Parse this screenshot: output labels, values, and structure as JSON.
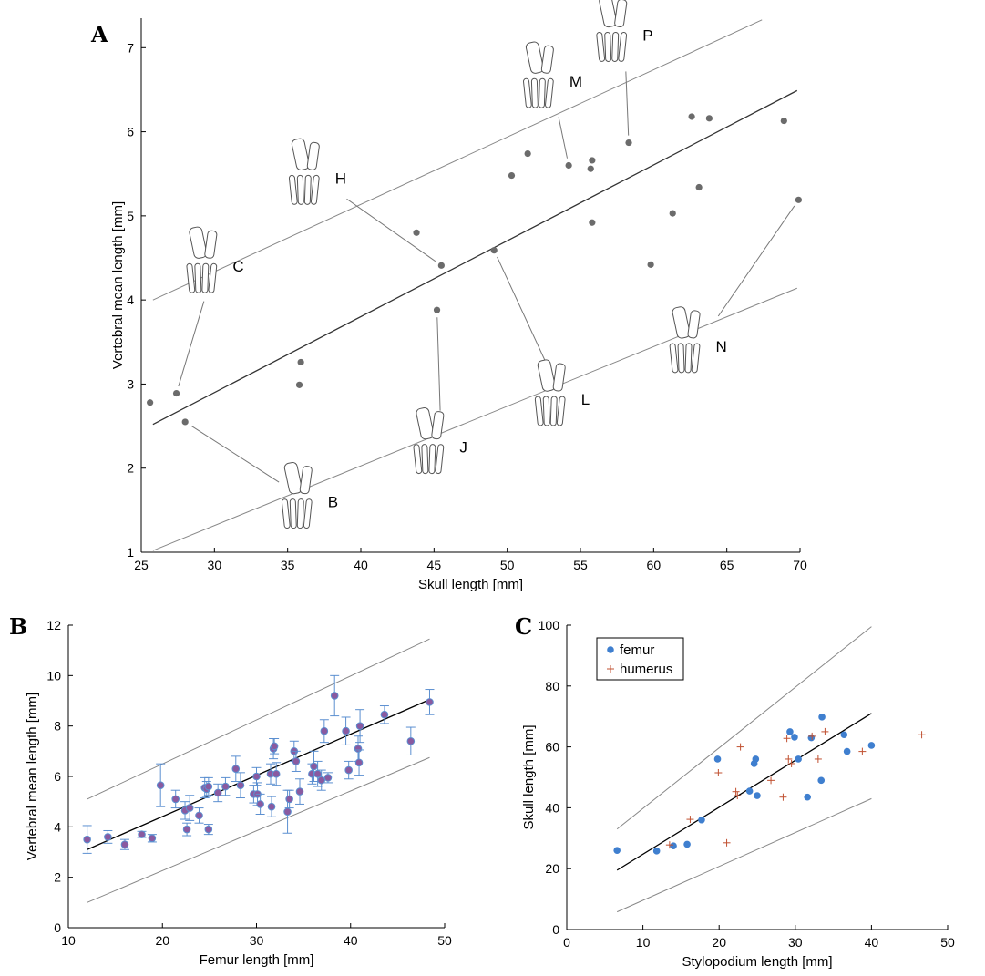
{
  "panels": {
    "A": {
      "letter": "A"
    },
    "B": {
      "letter": "B"
    },
    "C": {
      "letter": "C"
    }
  },
  "chart_data": [
    {
      "panel": "A",
      "type": "scatter",
      "xlabel": "Skull length [mm]",
      "ylabel": "Vertebral mean length [mm]",
      "xlim": [
        25,
        70
      ],
      "ylim": [
        1,
        7.35
      ],
      "xticks": [
        25,
        30,
        35,
        40,
        45,
        50,
        55,
        60,
        65,
        70
      ],
      "yticks": [
        1,
        2,
        3,
        4,
        5,
        6,
        7
      ],
      "grid": false,
      "points_color": "#6b6b6b",
      "points": [
        {
          "x": 25.6,
          "y": 2.78
        },
        {
          "x": 27.4,
          "y": 2.89
        },
        {
          "x": 28.0,
          "y": 2.55
        },
        {
          "x": 35.8,
          "y": 2.99
        },
        {
          "x": 35.9,
          "y": 3.26
        },
        {
          "x": 43.8,
          "y": 4.8
        },
        {
          "x": 45.2,
          "y": 3.88
        },
        {
          "x": 45.5,
          "y": 4.41
        },
        {
          "x": 49.1,
          "y": 4.59
        },
        {
          "x": 50.3,
          "y": 5.48
        },
        {
          "x": 51.4,
          "y": 5.74
        },
        {
          "x": 54.2,
          "y": 5.6
        },
        {
          "x": 55.7,
          "y": 5.56
        },
        {
          "x": 55.8,
          "y": 5.66
        },
        {
          "x": 55.8,
          "y": 4.92
        },
        {
          "x": 58.3,
          "y": 5.87
        },
        {
          "x": 59.8,
          "y": 4.42
        },
        {
          "x": 61.3,
          "y": 5.03
        },
        {
          "x": 62.6,
          "y": 6.18
        },
        {
          "x": 63.1,
          "y": 5.34
        },
        {
          "x": 63.8,
          "y": 6.16
        },
        {
          "x": 68.9,
          "y": 6.13
        },
        {
          "x": 69.9,
          "y": 5.19
        }
      ],
      "lines": [
        {
          "role": "fit",
          "x": [
            25.8,
            69.8
          ],
          "y": [
            2.52,
            6.49
          ],
          "color": "#333333"
        },
        {
          "role": "upper",
          "x": [
            25.8,
            67.4
          ],
          "y": [
            4.0,
            7.33
          ],
          "color": "#888888"
        },
        {
          "role": "lower",
          "x": [
            25.8,
            69.8
          ],
          "y": [
            1.02,
            4.14
          ],
          "color": "#888888"
        }
      ],
      "specimens": [
        {
          "label": "C",
          "x": 30.0,
          "y": 4.4,
          "point": {
            "x": 27.4,
            "y": 2.89
          }
        },
        {
          "label": "H",
          "x": 37.0,
          "y": 5.45,
          "point": {
            "x": 45.5,
            "y": 4.41
          }
        },
        {
          "label": "M",
          "x": 53.0,
          "y": 6.6,
          "point": {
            "x": 54.2,
            "y": 5.6
          }
        },
        {
          "label": "P",
          "x": 58.0,
          "y": 7.15,
          "point": {
            "x": 58.3,
            "y": 5.87
          }
        },
        {
          "label": "B",
          "x": 36.5,
          "y": 1.6,
          "point": {
            "x": 28.0,
            "y": 2.55
          }
        },
        {
          "label": "J",
          "x": 45.5,
          "y": 2.25,
          "point": {
            "x": 45.2,
            "y": 3.88
          }
        },
        {
          "label": "L",
          "x": 53.8,
          "y": 2.82,
          "point": {
            "x": 49.1,
            "y": 4.59
          }
        },
        {
          "label": "N",
          "x": 63.0,
          "y": 3.45,
          "point": {
            "x": 69.9,
            "y": 5.19
          }
        }
      ]
    },
    {
      "panel": "B",
      "type": "scatter",
      "xlabel": "Femur  length [mm]",
      "ylabel": "Vertebral mean length [mm]",
      "xlim": [
        10,
        50
      ],
      "ylim": [
        0,
        12
      ],
      "xticks": [
        10,
        20,
        30,
        40,
        50
      ],
      "yticks": [
        0,
        2,
        4,
        6,
        8,
        10,
        12
      ],
      "grid": false,
      "point_color": "#8a5aa0",
      "errorbar_color": "#5b8fd0",
      "points": [
        {
          "x": 12.0,
          "y": 3.5,
          "err": 0.55
        },
        {
          "x": 14.2,
          "y": 3.6,
          "err": 0.25
        },
        {
          "x": 16.0,
          "y": 3.3,
          "err": 0.2
        },
        {
          "x": 17.8,
          "y": 3.7,
          "err": 0.12
        },
        {
          "x": 18.9,
          "y": 3.55,
          "err": 0.15
        },
        {
          "x": 19.8,
          "y": 5.65,
          "err": 0.85
        },
        {
          "x": 21.4,
          "y": 5.1,
          "err": 0.35
        },
        {
          "x": 22.4,
          "y": 4.65,
          "err": 0.35
        },
        {
          "x": 22.6,
          "y": 3.9,
          "err": 0.25
        },
        {
          "x": 22.9,
          "y": 4.75,
          "err": 0.5
        },
        {
          "x": 23.9,
          "y": 4.45,
          "err": 0.3
        },
        {
          "x": 24.5,
          "y": 5.55,
          "err": 0.4
        },
        {
          "x": 24.7,
          "y": 5.5,
          "err": 0.3
        },
        {
          "x": 24.9,
          "y": 5.6,
          "err": 0.35
        },
        {
          "x": 24.9,
          "y": 3.9,
          "err": 0.2
        },
        {
          "x": 25.9,
          "y": 5.35,
          "err": 0.35
        },
        {
          "x": 26.7,
          "y": 5.6,
          "err": 0.35
        },
        {
          "x": 27.8,
          "y": 6.3,
          "err": 0.5
        },
        {
          "x": 28.3,
          "y": 5.65,
          "err": 0.5
        },
        {
          "x": 29.7,
          "y": 5.3,
          "err": 0.35
        },
        {
          "x": 30.0,
          "y": 6.0,
          "err": 0.35
        },
        {
          "x": 30.1,
          "y": 5.3,
          "err": 0.45
        },
        {
          "x": 30.4,
          "y": 4.9,
          "err": 0.4
        },
        {
          "x": 31.5,
          "y": 6.1,
          "err": 0.4
        },
        {
          "x": 31.6,
          "y": 4.8,
          "err": 0.4
        },
        {
          "x": 31.8,
          "y": 7.1,
          "err": 0.4
        },
        {
          "x": 31.9,
          "y": 7.2,
          "err": 0.3
        },
        {
          "x": 32.1,
          "y": 6.1,
          "err": 0.45
        },
        {
          "x": 33.3,
          "y": 4.6,
          "err": 0.85
        },
        {
          "x": 33.5,
          "y": 5.1,
          "err": 0.35
        },
        {
          "x": 34.0,
          "y": 7.0,
          "err": 0.4
        },
        {
          "x": 34.2,
          "y": 6.6,
          "err": 0.4
        },
        {
          "x": 34.6,
          "y": 5.4,
          "err": 0.5
        },
        {
          "x": 35.9,
          "y": 6.1,
          "err": 0.4
        },
        {
          "x": 36.1,
          "y": 6.4,
          "err": 0.6
        },
        {
          "x": 36.5,
          "y": 6.1,
          "err": 0.5
        },
        {
          "x": 36.9,
          "y": 5.85,
          "err": 0.4
        },
        {
          "x": 37.2,
          "y": 7.8,
          "err": 0.45
        },
        {
          "x": 37.6,
          "y": 5.95,
          "err": 0.2
        },
        {
          "x": 38.3,
          "y": 9.2,
          "err": 0.8
        },
        {
          "x": 39.5,
          "y": 7.8,
          "err": 0.55
        },
        {
          "x": 39.8,
          "y": 6.25,
          "err": 0.35
        },
        {
          "x": 40.8,
          "y": 7.1,
          "err": 0.5
        },
        {
          "x": 40.9,
          "y": 6.55,
          "err": 0.5
        },
        {
          "x": 41.0,
          "y": 8.0,
          "err": 0.65
        },
        {
          "x": 43.6,
          "y": 8.45,
          "err": 0.35
        },
        {
          "x": 46.4,
          "y": 7.4,
          "err": 0.55
        },
        {
          "x": 48.4,
          "y": 8.95,
          "err": 0.5
        }
      ],
      "lines": [
        {
          "role": "fit",
          "x": [
            12.0,
            48.4
          ],
          "y": [
            3.1,
            9.05
          ],
          "color": "#000000"
        },
        {
          "role": "upper",
          "x": [
            12.0,
            48.4
          ],
          "y": [
            5.1,
            11.45
          ],
          "color": "#888888"
        },
        {
          "role": "lower",
          "x": [
            12.0,
            48.4
          ],
          "y": [
            1.0,
            6.75
          ],
          "color": "#888888"
        }
      ]
    },
    {
      "panel": "C",
      "type": "scatter",
      "xlabel": "Stylopodium length [mm]",
      "ylabel": "Skull length [mm]",
      "xlim": [
        0,
        50
      ],
      "ylim": [
        0,
        100
      ],
      "xticks": [
        0,
        10,
        20,
        30,
        40,
        50
      ],
      "yticks": [
        0,
        20,
        40,
        60,
        80,
        100
      ],
      "grid": false,
      "legend": {
        "location": "top-left",
        "entries": [
          "femur",
          "humerus"
        ]
      },
      "series": [
        {
          "name": "femur",
          "marker": "circle",
          "color": "#3f7fcf",
          "points": [
            {
              "x": 6.6,
              "y": 26.0
            },
            {
              "x": 11.8,
              "y": 25.8
            },
            {
              "x": 14.0,
              "y": 27.5
            },
            {
              "x": 15.8,
              "y": 28.0
            },
            {
              "x": 17.7,
              "y": 36.0
            },
            {
              "x": 19.8,
              "y": 56.0
            },
            {
              "x": 24.0,
              "y": 45.5
            },
            {
              "x": 24.6,
              "y": 54.5
            },
            {
              "x": 24.8,
              "y": 56.0
            },
            {
              "x": 25.0,
              "y": 44.0
            },
            {
              "x": 29.3,
              "y": 65.0
            },
            {
              "x": 29.9,
              "y": 63.2
            },
            {
              "x": 30.4,
              "y": 56.0
            },
            {
              "x": 31.6,
              "y": 43.5
            },
            {
              "x": 32.1,
              "y": 63.0
            },
            {
              "x": 33.4,
              "y": 49.0
            },
            {
              "x": 33.5,
              "y": 69.8
            },
            {
              "x": 36.4,
              "y": 64.0
            },
            {
              "x": 36.8,
              "y": 58.5
            },
            {
              "x": 40.0,
              "y": 60.5
            }
          ]
        },
        {
          "name": "humerus",
          "marker": "plus",
          "color": "#c05030",
          "points": [
            {
              "x": 13.5,
              "y": 27.8
            },
            {
              "x": 16.2,
              "y": 36.2
            },
            {
              "x": 19.9,
              "y": 51.5
            },
            {
              "x": 21.0,
              "y": 28.5
            },
            {
              "x": 22.2,
              "y": 45.3
            },
            {
              "x": 22.4,
              "y": 44.0
            },
            {
              "x": 22.8,
              "y": 60.0
            },
            {
              "x": 26.8,
              "y": 49.0
            },
            {
              "x": 28.4,
              "y": 43.5
            },
            {
              "x": 28.9,
              "y": 62.8
            },
            {
              "x": 29.1,
              "y": 56.0
            },
            {
              "x": 29.5,
              "y": 54.5
            },
            {
              "x": 32.2,
              "y": 63.5
            },
            {
              "x": 33.0,
              "y": 56.0
            },
            {
              "x": 33.9,
              "y": 65.0
            },
            {
              "x": 38.8,
              "y": 58.5
            },
            {
              "x": 46.6,
              "y": 64.0
            }
          ]
        }
      ],
      "lines": [
        {
          "role": "fit",
          "x": [
            6.6,
            40.0
          ],
          "y": [
            19.5,
            71.0
          ],
          "color": "#000000"
        },
        {
          "role": "upper",
          "x": [
            6.6,
            40.0
          ],
          "y": [
            33.0,
            99.5
          ],
          "color": "#888888"
        },
        {
          "role": "lower",
          "x": [
            6.6,
            40.0
          ],
          "y": [
            5.8,
            43.0
          ],
          "color": "#888888"
        }
      ]
    }
  ]
}
